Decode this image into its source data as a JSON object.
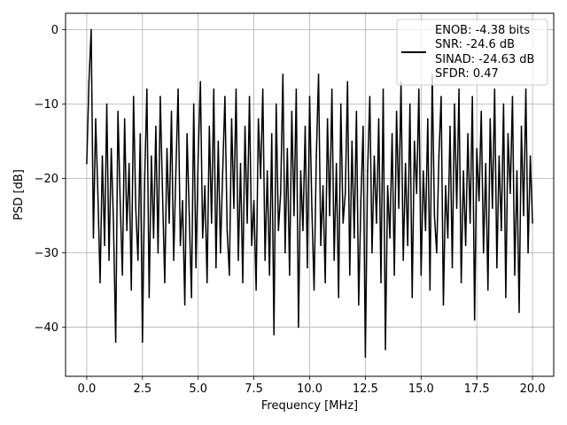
{
  "chart_data": {
    "type": "line",
    "title": "",
    "xlabel": "Frequency [MHz]",
    "ylabel": "PSD [dB]",
    "xlim": [
      -0.95,
      20.95
    ],
    "ylim": [
      -46.6,
      2.2
    ],
    "x_ticks": [
      0.0,
      2.5,
      5.0,
      7.5,
      10.0,
      12.5,
      15.0,
      17.5,
      20.0
    ],
    "x_tick_labels": [
      "0.0",
      "2.5",
      "5.0",
      "7.5",
      "10.0",
      "12.5",
      "15.0",
      "17.5",
      "20.0"
    ],
    "y_ticks": [
      0,
      -10,
      -20,
      -30,
      -40
    ],
    "y_tick_labels": [
      "0",
      "−10",
      "−20",
      "−30",
      "−40"
    ],
    "grid": true,
    "legend": {
      "location": "upper right",
      "entries": [
        "ENOB: -4.38 bits",
        "SNR: -24.6 dB",
        "SINAD: -24.63 dB",
        "SFDR: 0.47"
      ]
    },
    "series_color": "#000000",
    "series": [
      {
        "name": "ENOB: -4.38 bits\nSNR: -24.6 dB\nSINAD: -24.63 dB\nSFDR: 0.47",
        "x": [
          0.0,
          0.1,
          0.2,
          0.3,
          0.4,
          0.5,
          0.6,
          0.7,
          0.8,
          0.9,
          1.0,
          1.1,
          1.2,
          1.3,
          1.4,
          1.5,
          1.6,
          1.7,
          1.8,
          1.9,
          2.0,
          2.1,
          2.2,
          2.3,
          2.4,
          2.5,
          2.6,
          2.7,
          2.8,
          2.9,
          3.0,
          3.1,
          3.2,
          3.3,
          3.4,
          3.5,
          3.6,
          3.7,
          3.8,
          3.9,
          4.0,
          4.1,
          4.2,
          4.3,
          4.4,
          4.5,
          4.6,
          4.7,
          4.8,
          4.9,
          5.0,
          5.1,
          5.2,
          5.3,
          5.4,
          5.5,
          5.6,
          5.7,
          5.8,
          5.9,
          6.0,
          6.1,
          6.2,
          6.3,
          6.4,
          6.5,
          6.6,
          6.7,
          6.8,
          6.9,
          7.0,
          7.1,
          7.2,
          7.3,
          7.4,
          7.5,
          7.6,
          7.7,
          7.8,
          7.9,
          8.0,
          8.1,
          8.2,
          8.3,
          8.4,
          8.5,
          8.6,
          8.7,
          8.8,
          8.9,
          9.0,
          9.1,
          9.2,
          9.3,
          9.4,
          9.5,
          9.6,
          9.7,
          9.8,
          9.9,
          10.0,
          10.1,
          10.2,
          10.3,
          10.4,
          10.5,
          10.6,
          10.7,
          10.8,
          10.9,
          11.0,
          11.1,
          11.2,
          11.3,
          11.4,
          11.5,
          11.6,
          11.7,
          11.8,
          11.9,
          12.0,
          12.1,
          12.2,
          12.3,
          12.4,
          12.5,
          12.6,
          12.7,
          12.8,
          12.9,
          13.0,
          13.1,
          13.2,
          13.3,
          13.4,
          13.5,
          13.6,
          13.7,
          13.8,
          13.9,
          14.0,
          14.1,
          14.2,
          14.3,
          14.4,
          14.5,
          14.6,
          14.7,
          14.8,
          14.9,
          15.0,
          15.1,
          15.2,
          15.3,
          15.4,
          15.5,
          15.6,
          15.7,
          15.8,
          15.9,
          16.0,
          16.1,
          16.2,
          16.3,
          16.4,
          16.5,
          16.6,
          16.7,
          16.8,
          16.9,
          17.0,
          17.1,
          17.2,
          17.3,
          17.4,
          17.5,
          17.6,
          17.7,
          17.8,
          17.9,
          18.0,
          18.1,
          18.2,
          18.3,
          18.4,
          18.5,
          18.6,
          18.7,
          18.8,
          18.9,
          19.0,
          19.1,
          19.2,
          19.3,
          19.4,
          19.5,
          19.6,
          19.7,
          19.8,
          19.9,
          20.0
        ],
        "y": [
          -18,
          -7,
          0,
          -28,
          -12,
          -22,
          -34,
          -17,
          -29,
          -10,
          -31,
          -16,
          -26,
          -42,
          -11,
          -23,
          -33,
          -12,
          -27,
          -18,
          -35,
          -9,
          -24,
          -31,
          -14,
          -42,
          -20,
          -8,
          -36,
          -17,
          -28,
          -13,
          -30,
          -9,
          -22,
          -34,
          -16,
          -26,
          -11,
          -31,
          -19,
          -8,
          -29,
          -23,
          -37,
          -14,
          -25,
          -36,
          -10,
          -32,
          -17,
          -7,
          -28,
          -21,
          -34,
          -13,
          -26,
          -8,
          -32,
          -15,
          -30,
          -19,
          -9,
          -27,
          -33,
          -12,
          -24,
          -8,
          -31,
          -18,
          -34,
          -13,
          -26,
          -9,
          -29,
          -23,
          -35,
          -12,
          -20,
          -8,
          -31,
          -19,
          -33,
          -14,
          -41,
          -10,
          -27,
          -22,
          -6,
          -30,
          -16,
          -33,
          -11,
          -25,
          -8,
          -40,
          -19,
          -27,
          -13,
          -32,
          -9,
          -24,
          -35,
          -17,
          -6,
          -29,
          -21,
          -34,
          -12,
          -25,
          -8,
          -31,
          -18,
          -36,
          -10,
          -26,
          -22,
          -7,
          -33,
          -15,
          -28,
          -11,
          -37,
          -23,
          -13,
          -44,
          -19,
          -9,
          -30,
          -17,
          -26,
          -12,
          -34,
          -8,
          -43,
          -21,
          -28,
          -14,
          -33,
          -11,
          -24,
          -7,
          -31,
          -18,
          -29,
          -10,
          -36,
          -15,
          -22,
          -8,
          -33,
          -19,
          -27,
          -12,
          -35,
          -6,
          -25,
          -30,
          -17,
          -9,
          -37,
          -21,
          -28,
          -13,
          -32,
          -10,
          -24,
          -8,
          -34,
          -19,
          -29,
          -14,
          -26,
          -9,
          -39,
          -16,
          -23,
          -11,
          -30,
          -18,
          -35,
          -12,
          -24,
          -8,
          -32,
          -17,
          -27,
          -10,
          -36,
          -14,
          -22,
          -9,
          -33,
          -19,
          -38,
          -13,
          -25,
          -8,
          -30,
          -17,
          -26
        ]
      }
    ]
  }
}
